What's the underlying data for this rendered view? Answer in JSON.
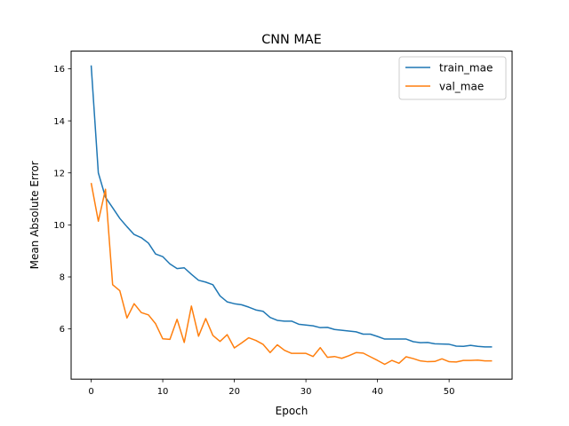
{
  "chart_data": {
    "type": "line",
    "title": "CNN MAE",
    "xlabel": "Epoch",
    "ylabel": "Mean Absolute Error",
    "xlim": [
      -2.8,
      58.8
    ],
    "ylim": [
      4.07,
      16.68
    ],
    "xticks": [
      0,
      10,
      20,
      30,
      40,
      50
    ],
    "yticks": [
      6,
      8,
      10,
      12,
      14,
      16
    ],
    "grid": false,
    "legend_position": "top-right",
    "series": [
      {
        "name": "train_mae",
        "color": "#1f77b4",
        "x": [
          0,
          1,
          2,
          3,
          4,
          5,
          6,
          7,
          8,
          9,
          10,
          11,
          12,
          13,
          14,
          15,
          16,
          17,
          18,
          19,
          20,
          21,
          22,
          23,
          24,
          25,
          26,
          27,
          28,
          29,
          30,
          31,
          32,
          33,
          34,
          35,
          36,
          37,
          38,
          39,
          40,
          41,
          42,
          43,
          44,
          45,
          46,
          47,
          48,
          49,
          50,
          51,
          52,
          53,
          54,
          55,
          56
        ],
        "values": [
          16.13,
          12.0,
          11.06,
          10.66,
          10.25,
          9.93,
          9.63,
          9.51,
          9.3,
          8.88,
          8.78,
          8.5,
          8.32,
          8.35,
          8.1,
          7.87,
          7.8,
          7.7,
          7.27,
          7.04,
          6.97,
          6.93,
          6.84,
          6.73,
          6.68,
          6.44,
          6.33,
          6.3,
          6.3,
          6.18,
          6.15,
          6.12,
          6.05,
          6.06,
          5.98,
          5.95,
          5.92,
          5.89,
          5.8,
          5.8,
          5.71,
          5.61,
          5.61,
          5.61,
          5.61,
          5.51,
          5.47,
          5.48,
          5.43,
          5.42,
          5.41,
          5.34,
          5.33,
          5.37,
          5.33,
          5.31,
          5.31
        ]
      },
      {
        "name": "val_mae",
        "color": "#ff7f0e",
        "x": [
          0,
          1,
          2,
          3,
          4,
          5,
          6,
          7,
          8,
          9,
          10,
          11,
          12,
          13,
          14,
          15,
          16,
          17,
          18,
          19,
          20,
          21,
          22,
          23,
          24,
          25,
          26,
          27,
          28,
          29,
          30,
          31,
          32,
          33,
          34,
          35,
          36,
          37,
          38,
          39,
          40,
          41,
          42,
          43,
          44,
          45,
          46,
          47,
          48,
          49,
          50,
          51,
          52,
          53,
          54,
          55,
          56
        ],
        "values": [
          11.61,
          10.14,
          11.37,
          7.7,
          7.47,
          6.42,
          6.97,
          6.63,
          6.54,
          6.2,
          5.62,
          5.6,
          6.37,
          5.48,
          6.88,
          5.72,
          6.4,
          5.75,
          5.52,
          5.78,
          5.27,
          5.46,
          5.66,
          5.56,
          5.41,
          5.09,
          5.39,
          5.18,
          5.06,
          5.06,
          5.06,
          4.94,
          5.28,
          4.91,
          4.94,
          4.87,
          4.97,
          5.09,
          5.07,
          4.93,
          4.79,
          4.64,
          4.79,
          4.68,
          4.93,
          4.86,
          4.77,
          4.74,
          4.75,
          4.85,
          4.74,
          4.73,
          4.79,
          4.79,
          4.8,
          4.77,
          4.77
        ]
      }
    ]
  }
}
